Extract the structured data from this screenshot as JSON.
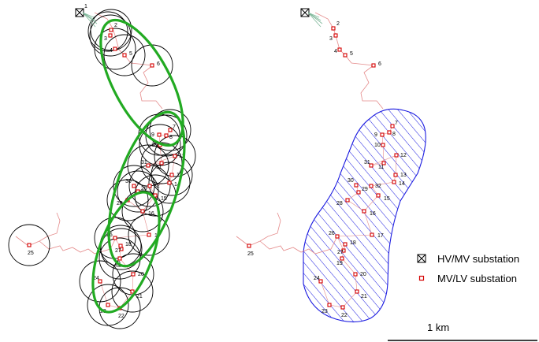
{
  "legend": {
    "hv_mv": "HV/MV substation",
    "mv_lv": "MV/LV substation"
  },
  "scale_bar": {
    "label": "1 km"
  },
  "hv_label": "1",
  "colors": {
    "network_line": "#e58b8b",
    "substation": "#d40000",
    "coverage_circle": "#000000",
    "cluster_ellipse": "#22aa22",
    "hatched_area": "#1a1ae0",
    "feeder_start": "#7fb89a"
  },
  "substations": [
    {
      "id": "2"
    },
    {
      "id": "3"
    },
    {
      "id": "4"
    },
    {
      "id": "5"
    },
    {
      "id": "6"
    },
    {
      "id": "7"
    },
    {
      "id": "8"
    },
    {
      "id": "9"
    },
    {
      "id": "10"
    },
    {
      "id": "11"
    },
    {
      "id": "12"
    },
    {
      "id": "13"
    },
    {
      "id": "14"
    },
    {
      "id": "15"
    },
    {
      "id": "16"
    },
    {
      "id": "17"
    },
    {
      "id": "18"
    },
    {
      "id": "19"
    },
    {
      "id": "20"
    },
    {
      "id": "21"
    },
    {
      "id": "22"
    },
    {
      "id": "23"
    },
    {
      "id": "24"
    },
    {
      "id": "25"
    },
    {
      "id": "26"
    },
    {
      "id": "27"
    },
    {
      "id": "28"
    },
    {
      "id": "29"
    },
    {
      "id": "30"
    },
    {
      "id": "31"
    },
    {
      "id": "32"
    }
  ]
}
